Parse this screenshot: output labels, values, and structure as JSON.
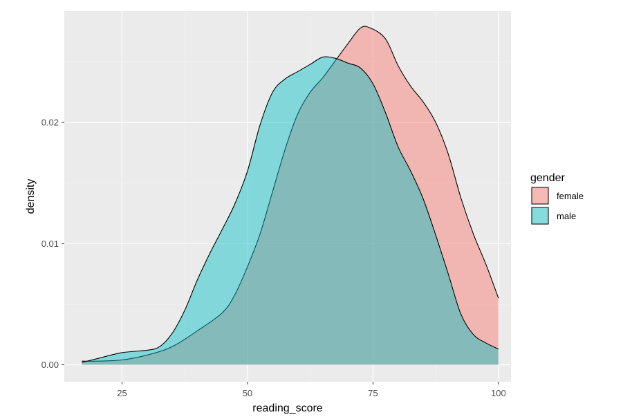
{
  "chart_data": {
    "type": "area",
    "subtype": "density",
    "xlabel": "reading_score",
    "ylabel": "density",
    "xlim": [
      13.5,
      102.5
    ],
    "ylim": [
      -0.0014,
      0.0292
    ],
    "x_ticks": [
      25,
      50,
      75,
      100
    ],
    "x_tick_labels": [
      "25",
      "50",
      "75",
      "100"
    ],
    "y_ticks": [
      0.0,
      0.01,
      0.02
    ],
    "y_tick_labels": [
      "0.00",
      "0.01",
      "0.02"
    ],
    "grid": true,
    "legend": {
      "title": "gender",
      "position": "right",
      "entries": [
        "female",
        "male"
      ]
    },
    "series": [
      {
        "name": "female",
        "color": "#F8766D",
        "points": [
          [
            17,
            0.0003
          ],
          [
            20,
            0.0003
          ],
          [
            25,
            0.0004
          ],
          [
            30,
            0.0008
          ],
          [
            35,
            0.0015
          ],
          [
            40,
            0.0028
          ],
          [
            45,
            0.0043
          ],
          [
            47.5,
            0.0058
          ],
          [
            50,
            0.0081
          ],
          [
            52.5,
            0.0108
          ],
          [
            55,
            0.0143
          ],
          [
            57.5,
            0.0178
          ],
          [
            60,
            0.0207
          ],
          [
            62.5,
            0.0225
          ],
          [
            65,
            0.0237
          ],
          [
            67.5,
            0.0251
          ],
          [
            70,
            0.0265
          ],
          [
            72.5,
            0.0278
          ],
          [
            74.5,
            0.0278
          ],
          [
            77.5,
            0.0269
          ],
          [
            80,
            0.0247
          ],
          [
            82.5,
            0.023
          ],
          [
            85,
            0.0217
          ],
          [
            87.5,
            0.02
          ],
          [
            90,
            0.0174
          ],
          [
            92.5,
            0.0138
          ],
          [
            95,
            0.0108
          ],
          [
            97.5,
            0.0083
          ],
          [
            100,
            0.0055
          ]
        ]
      },
      {
        "name": "male",
        "color": "#00BFC4",
        "points": [
          [
            17,
            0.0002
          ],
          [
            20,
            0.0005
          ],
          [
            25,
            0.001
          ],
          [
            30,
            0.0012
          ],
          [
            32.5,
            0.0015
          ],
          [
            35,
            0.0026
          ],
          [
            37.5,
            0.0045
          ],
          [
            40,
            0.007
          ],
          [
            42.5,
            0.0092
          ],
          [
            45,
            0.0112
          ],
          [
            47.5,
            0.0133
          ],
          [
            50,
            0.016
          ],
          [
            52.5,
            0.0198
          ],
          [
            55,
            0.0225
          ],
          [
            57.5,
            0.0236
          ],
          [
            60,
            0.0242
          ],
          [
            62.5,
            0.0248
          ],
          [
            65,
            0.0254
          ],
          [
            67.5,
            0.0253
          ],
          [
            70,
            0.0249
          ],
          [
            72.5,
            0.0245
          ],
          [
            75,
            0.0232
          ],
          [
            77.5,
            0.0208
          ],
          [
            80,
            0.018
          ],
          [
            82.5,
            0.016
          ],
          [
            85,
            0.0137
          ],
          [
            87.5,
            0.0107
          ],
          [
            90,
            0.0075
          ],
          [
            92.5,
            0.0042
          ],
          [
            95,
            0.0025
          ],
          [
            97.5,
            0.0018
          ],
          [
            100,
            0.0013
          ]
        ]
      }
    ]
  }
}
